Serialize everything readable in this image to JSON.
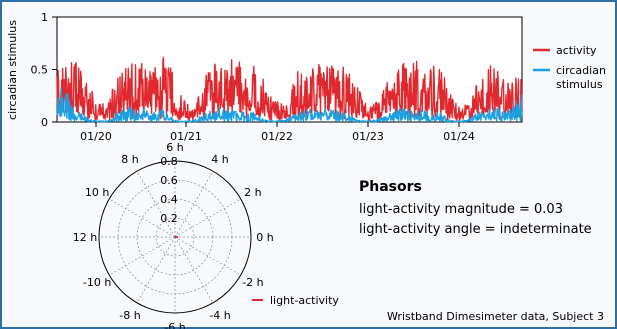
{
  "colors": {
    "frame_border": "#2f6fa8",
    "background": "#f7f9fc",
    "activity": "#e0282e",
    "circadian": "#1ba1e2",
    "axis": "#000000",
    "grid": "#8a8a8a"
  },
  "chart_data": [
    {
      "type": "line",
      "ylabel": "circadian stimulus",
      "ylim": [
        0,
        1
      ],
      "yticks": [
        "0",
        "0.5",
        "1"
      ],
      "xticks": [
        "01/20",
        "01/21",
        "01/22",
        "01/23",
        "01/24"
      ],
      "xlim_days": [
        19.67,
        24.75
      ],
      "grid": false,
      "legend_position": "right",
      "series": [
        {
          "name": "activity",
          "color": "#e0282e",
          "day_envelope": [
            [
              19.67,
              0.56
            ],
            [
              19.75,
              0.5
            ],
            [
              19.85,
              0.62
            ],
            [
              19.95,
              0.45
            ],
            [
              20.05,
              0.3
            ],
            [
              20.12,
              0.2
            ],
            [
              20.22,
              0.15
            ],
            [
              20.32,
              0.5
            ],
            [
              20.42,
              0.62
            ],
            [
              20.52,
              0.55
            ],
            [
              20.62,
              0.6
            ],
            [
              20.72,
              0.48
            ],
            [
              20.82,
              0.65
            ],
            [
              20.9,
              0.55
            ],
            [
              21.0,
              0.3
            ],
            [
              21.1,
              0.18
            ],
            [
              21.2,
              0.2
            ],
            [
              21.3,
              0.55
            ],
            [
              21.4,
              0.6
            ],
            [
              21.5,
              0.58
            ],
            [
              21.6,
              0.62
            ],
            [
              21.7,
              0.55
            ],
            [
              21.8,
              0.58
            ],
            [
              21.9,
              0.5
            ],
            [
              22.0,
              0.25
            ],
            [
              22.1,
              0.2
            ],
            [
              22.2,
              0.22
            ],
            [
              22.3,
              0.58
            ],
            [
              22.4,
              0.55
            ],
            [
              22.5,
              0.6
            ],
            [
              22.6,
              0.5
            ],
            [
              22.7,
              0.62
            ],
            [
              22.8,
              0.55
            ],
            [
              22.9,
              0.45
            ],
            [
              23.0,
              0.25
            ],
            [
              23.1,
              0.18
            ],
            [
              23.2,
              0.2
            ],
            [
              23.3,
              0.5
            ],
            [
              23.4,
              0.6
            ],
            [
              23.5,
              0.55
            ],
            [
              23.6,
              0.58
            ],
            [
              23.7,
              0.45
            ],
            [
              23.8,
              0.55
            ],
            [
              23.9,
              0.48
            ],
            [
              24.0,
              0.2
            ],
            [
              24.1,
              0.15
            ],
            [
              24.2,
              0.25
            ],
            [
              24.3,
              0.45
            ],
            [
              24.4,
              0.55
            ],
            [
              24.5,
              0.5
            ],
            [
              24.6,
              0.42
            ],
            [
              24.7,
              0.48
            ],
            [
              24.75,
              0.5
            ]
          ]
        },
        {
          "name": "circadian stimulus",
          "color": "#1ba1e2",
          "day_envelope": [
            [
              19.67,
              0.3
            ],
            [
              19.75,
              0.4
            ],
            [
              19.85,
              0.12
            ],
            [
              19.95,
              0.08
            ],
            [
              20.05,
              0.02
            ],
            [
              20.15,
              0.01
            ],
            [
              20.25,
              0.02
            ],
            [
              20.35,
              0.12
            ],
            [
              20.45,
              0.15
            ],
            [
              20.55,
              0.1
            ],
            [
              20.65,
              0.14
            ],
            [
              20.75,
              0.1
            ],
            [
              20.85,
              0.12
            ],
            [
              20.95,
              0.03
            ],
            [
              21.05,
              0.01
            ],
            [
              21.15,
              0.02
            ],
            [
              21.25,
              0.06
            ],
            [
              21.35,
              0.12
            ],
            [
              21.45,
              0.15
            ],
            [
              21.55,
              0.1
            ],
            [
              21.65,
              0.12
            ],
            [
              21.75,
              0.08
            ],
            [
              21.85,
              0.1
            ],
            [
              21.95,
              0.02
            ],
            [
              22.05,
              0.01
            ],
            [
              22.15,
              0.02
            ],
            [
              22.25,
              0.08
            ],
            [
              22.35,
              0.1
            ],
            [
              22.45,
              0.14
            ],
            [
              22.55,
              0.12
            ],
            [
              22.65,
              0.12
            ],
            [
              22.75,
              0.1
            ],
            [
              22.85,
              0.08
            ],
            [
              22.95,
              0.02
            ],
            [
              23.05,
              0.01
            ],
            [
              23.15,
              0.02
            ],
            [
              23.25,
              0.06
            ],
            [
              23.35,
              0.1
            ],
            [
              23.45,
              0.14
            ],
            [
              23.55,
              0.1
            ],
            [
              23.65,
              0.12
            ],
            [
              23.75,
              0.08
            ],
            [
              23.85,
              0.1
            ],
            [
              23.95,
              0.02
            ],
            [
              24.05,
              0.01
            ],
            [
              24.15,
              0.02
            ],
            [
              24.25,
              0.08
            ],
            [
              24.35,
              0.12
            ],
            [
              24.45,
              0.15
            ],
            [
              24.55,
              0.12
            ],
            [
              24.65,
              0.14
            ],
            [
              24.75,
              0.3
            ]
          ]
        }
      ]
    },
    {
      "type": "polar",
      "rlim": [
        0,
        0.8
      ],
      "radial_ticks": [
        "0.2",
        "0.4",
        "0.6",
        "0.8"
      ],
      "hour_labels": [
        {
          "label": "6 h",
          "angle_deg": 90
        },
        {
          "label": "4 h",
          "angle_deg": 60
        },
        {
          "label": "2 h",
          "angle_deg": 30
        },
        {
          "label": "0 h",
          "angle_deg": 0
        },
        {
          "label": "-2 h",
          "angle_deg": -30
        },
        {
          "label": "-4 h",
          "angle_deg": -60
        },
        {
          "label": "-6 h",
          "angle_deg": -90
        },
        {
          "label": "-8 h",
          "angle_deg": -120
        },
        {
          "label": "-10 h",
          "angle_deg": -150
        },
        {
          "label": "12 h",
          "angle_deg": 180
        },
        {
          "label": "10 h",
          "angle_deg": 150
        },
        {
          "label": "8 h",
          "angle_deg": 120
        }
      ],
      "series": [
        {
          "name": "light-activity",
          "color": "#e0282e",
          "magnitude": 0.03,
          "angle_deg": 0
        }
      ]
    }
  ],
  "phasors": {
    "heading": "Phasors",
    "magnitude_text": "light-activity magnitude = 0.03",
    "angle_text": "light-activity angle = indeterminate"
  },
  "footer": "Wristband Dimesimeter data, Subject 3"
}
